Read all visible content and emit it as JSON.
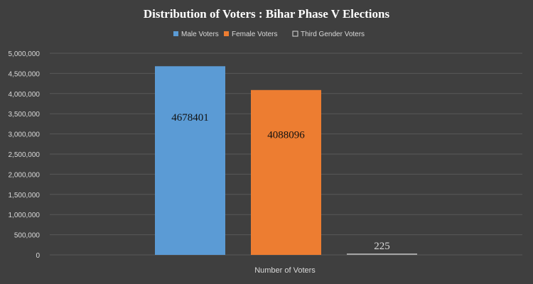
{
  "chart_data": {
    "type": "bar",
    "title": "Distribution of Voters : Bihar Phase V Elections",
    "xlabel": "Number of Voters",
    "ylabel": "",
    "categories": [
      "Number of Voters"
    ],
    "series": [
      {
        "name": "Male Voters",
        "values": [
          4678401
        ],
        "color": "#5b9bd5"
      },
      {
        "name": "Female Voters",
        "values": [
          4088096
        ],
        "color": "#ed7d31"
      },
      {
        "name": "Third Gender Voters",
        "values": [
          225
        ],
        "color": "#a5a5a5"
      }
    ],
    "ylim": [
      0,
      5000000
    ],
    "yticks": [
      "0",
      "500,000",
      "1,000,000",
      "1,500,000",
      "2,000,000",
      "2,500,000",
      "3,000,000",
      "3,500,000",
      "4,000,000",
      "4,500,000",
      "5,000,000"
    ],
    "data_labels": [
      "4678401",
      "4088096",
      "225"
    ],
    "grid": true,
    "legend_position": "top"
  }
}
